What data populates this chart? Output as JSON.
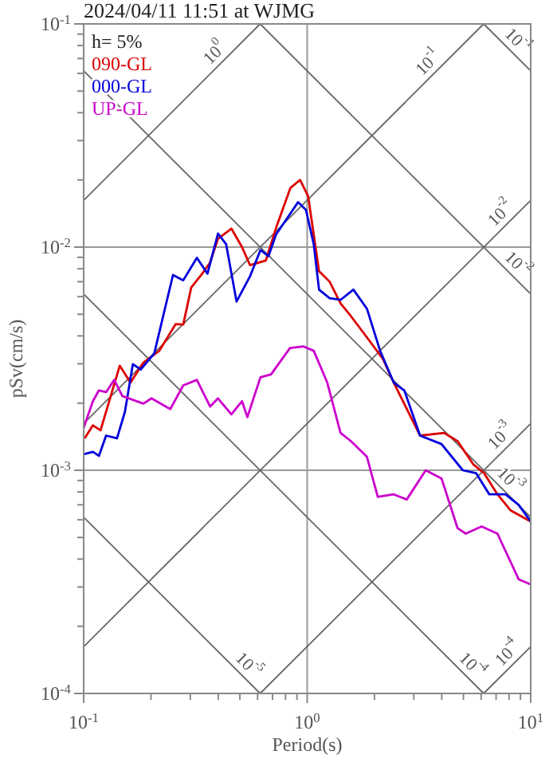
{
  "chart_data": {
    "type": "line",
    "title": "2024/04/11 11:51 at WJMG",
    "xlabel": "Period(s)",
    "ylabel": "pSv(cm/s)",
    "legend_title": "h= 5%",
    "legend": "top left",
    "log": "xy",
    "grid": true,
    "xlim": [
      0.1,
      10
    ],
    "ylim": [
      0.0001,
      0.1
    ],
    "xticks": [
      {
        "value": 0.1,
        "label": "10$^{-1}$"
      },
      {
        "value": 0.2,
        "label": null
      },
      {
        "value": 0.3,
        "label": null
      },
      {
        "value": 0.4,
        "label": null
      },
      {
        "value": 0.5,
        "label": null
      },
      {
        "value": 0.6,
        "label": null
      },
      {
        "value": 0.7,
        "label": null
      },
      {
        "value": 0.8,
        "label": null
      },
      {
        "value": 0.9,
        "label": null
      },
      {
        "value": 1,
        "label": "10$^{0}$"
      },
      {
        "value": 2,
        "label": null
      },
      {
        "value": 3,
        "label": null
      },
      {
        "value": 4,
        "label": null
      },
      {
        "value": 5,
        "label": null
      },
      {
        "value": 6,
        "label": null
      },
      {
        "value": 7,
        "label": null
      },
      {
        "value": 8,
        "label": null
      },
      {
        "value": 9,
        "label": null
      },
      {
        "value": 10,
        "label": "10$^{1}$"
      }
    ],
    "yticks": [
      {
        "value": 0.0001,
        "label": "10$^{-4}$"
      },
      {
        "value": 0.0002,
        "label": null
      },
      {
        "value": 0.0003,
        "label": null
      },
      {
        "value": 0.0004,
        "label": null
      },
      {
        "value": 0.0005,
        "label": null
      },
      {
        "value": 0.0006,
        "label": null
      },
      {
        "value": 0.0007,
        "label": null
      },
      {
        "value": 0.0008,
        "label": null
      },
      {
        "value": 0.0009,
        "label": null
      },
      {
        "value": 0.001,
        "label": "10$^{-3}$"
      },
      {
        "value": 0.002,
        "label": null
      },
      {
        "value": 0.003,
        "label": null
      },
      {
        "value": 0.004,
        "label": null
      },
      {
        "value": 0.005,
        "label": null
      },
      {
        "value": 0.006,
        "label": null
      },
      {
        "value": 0.007,
        "label": null
      },
      {
        "value": 0.008,
        "label": null
      },
      {
        "value": 0.009,
        "label": null
      },
      {
        "value": 0.01,
        "label": "10$^{-2}$"
      },
      {
        "value": 0.02,
        "label": null
      },
      {
        "value": 0.03,
        "label": null
      },
      {
        "value": 0.04,
        "label": null
      },
      {
        "value": 0.05,
        "label": null
      },
      {
        "value": 0.06,
        "label": null
      },
      {
        "value": 0.07,
        "label": null
      },
      {
        "value": 0.08,
        "label": null
      },
      {
        "value": 0.09,
        "label": null
      },
      {
        "value": 0.1,
        "label": "10$^{-1}$"
      }
    ],
    "series": [
      {
        "name": "090-GL",
        "color": "#dd0000",
        "x": [
          0.101,
          0.11,
          0.119,
          0.145,
          0.162,
          0.185,
          0.218,
          0.258,
          0.279,
          0.303,
          0.339,
          0.367,
          0.399,
          0.458,
          0.511,
          0.555,
          0.653,
          0.726,
          0.841,
          0.929,
          1.01,
          1.13,
          1.26,
          1.41,
          1.57,
          1.85,
          2.18,
          2.44,
          2.87,
          3.2,
          4.1,
          4.71,
          5.55,
          6.19,
          7.1,
          8.15,
          10
        ],
        "values": [
          0.00139,
          0.00159,
          0.00151,
          0.00294,
          0.00247,
          0.00304,
          0.00343,
          0.00452,
          0.0045,
          0.0066,
          0.0076,
          0.0085,
          0.0109,
          0.0121,
          0.01,
          0.0083,
          0.0087,
          0.0122,
          0.0184,
          0.02,
          0.0169,
          0.0078,
          0.007,
          0.0056,
          0.0049,
          0.00394,
          0.00316,
          0.00247,
          0.00178,
          0.00143,
          0.00147,
          0.00135,
          0.00106,
          0.00097,
          0.00078,
          0.00066,
          0.00059
        ]
      },
      {
        "name": "000-GL",
        "color": "#0000dd",
        "x": [
          0.1,
          0.11,
          0.117,
          0.126,
          0.141,
          0.153,
          0.166,
          0.18,
          0.207,
          0.231,
          0.251,
          0.279,
          0.321,
          0.358,
          0.399,
          0.434,
          0.483,
          0.555,
          0.618,
          0.671,
          0.726,
          0.815,
          0.91,
          0.987,
          1.07,
          1.13,
          1.26,
          1.41,
          1.61,
          1.85,
          2.12,
          2.44,
          2.72,
          3.2,
          3.99,
          4.97,
          5.7,
          6.53,
          7.71,
          8.83,
          10
        ],
        "values": [
          0.00118,
          0.00121,
          0.00116,
          0.00143,
          0.00139,
          0.00183,
          0.00299,
          0.00283,
          0.00334,
          0.0053,
          0.0075,
          0.0071,
          0.00895,
          0.0076,
          0.0115,
          0.0103,
          0.0057,
          0.0074,
          0.0097,
          0.0091,
          0.0114,
          0.0135,
          0.0159,
          0.0147,
          0.0103,
          0.00645,
          0.0059,
          0.0058,
          0.00645,
          0.0053,
          0.00343,
          0.00247,
          0.00228,
          0.00143,
          0.00131,
          0.001,
          0.00097,
          0.00078,
          0.00078,
          0.0007,
          0.00059
        ]
      },
      {
        "name": "UP-GL",
        "color": "#cc00cc",
        "x": [
          0.1,
          0.11,
          0.117,
          0.126,
          0.137,
          0.149,
          0.185,
          0.201,
          0.244,
          0.279,
          0.321,
          0.368,
          0.399,
          0.458,
          0.511,
          0.54,
          0.618,
          0.69,
          0.729,
          0.838,
          0.96,
          1.07,
          1.23,
          1.41,
          1.57,
          1.85,
          2.07,
          2.44,
          2.79,
          3.39,
          3.99,
          4.71,
          5.12,
          6.03,
          7.1,
          8.83,
          10
        ],
        "values": [
          0.00155,
          0.00204,
          0.00228,
          0.00224,
          0.00254,
          0.00215,
          0.00199,
          0.0021,
          0.00188,
          0.0024,
          0.00254,
          0.00193,
          0.0021,
          0.00178,
          0.00204,
          0.00173,
          0.00261,
          0.00269,
          0.00291,
          0.00353,
          0.00359,
          0.00343,
          0.00247,
          0.00147,
          0.00135,
          0.00115,
          0.00076,
          0.00078,
          0.00074,
          0.001,
          0.00092,
          0.00055,
          0.00052,
          0.00056,
          0.00052,
          0.000325,
          0.000308
        ]
      },
      {
        "color": "#666666",
        "x": [
          0.1,
          0.616
        ],
        "values": [
          0.0162,
          0.1
        ]
      },
      {
        "color": "#666666",
        "x": [
          0.1,
          6.16
        ],
        "values": [
          0.00162,
          0.1
        ]
      },
      {
        "color": "#666666",
        "x": [
          0.1,
          10
        ],
        "values": [
          0.000162,
          0.0162
        ]
      },
      {
        "color": "#666666",
        "x": [
          0.616,
          10
        ],
        "values": [
          0.0001,
          0.00162
        ]
      },
      {
        "color": "#666666",
        "x": [
          6.16,
          10
        ],
        "values": [
          0.0001,
          0.000162
        ]
      },
      {
        "color": "#666666",
        "x": [
          6.16,
          10
        ],
        "values": [
          0.1,
          0.0616
        ]
      },
      {
        "color": "#666666",
        "x": [
          0.616,
          10
        ],
        "values": [
          0.1,
          0.00616
        ]
      },
      {
        "color": "#666666",
        "x": [
          0.1,
          10
        ],
        "values": [
          0.0616,
          0.000616
        ]
      },
      {
        "color": "#666666",
        "x": [
          0.1,
          6.16
        ],
        "values": [
          0.00616,
          0.0001
        ]
      },
      {
        "color": "#666666",
        "x": [
          0.1,
          0.616
        ],
        "values": [
          0.000616,
          0.0001
        ]
      }
    ],
    "annotations": [
      {
        "text": "10$^{0}$",
        "x": 0.42,
        "y": 0.068
      },
      {
        "text": "10$^{-1}$",
        "x": 3.8,
        "y": 0.0616
      },
      {
        "text": "10$^{-2}$",
        "x": 8,
        "y": 0.013
      },
      {
        "text": "10$^{-3}$",
        "x": 8,
        "y": 0.0013
      },
      {
        "text": "10$^{-4}$",
        "x": 8.6,
        "y": 0.000139
      },
      {
        "text": "10$^{-1}$",
        "x": 8,
        "y": 0.077
      },
      {
        "text": "10$^{-2}$",
        "x": 8,
        "y": 0.0077
      },
      {
        "text": "10$^{-3}$",
        "x": 7.4,
        "y": 0.00083
      },
      {
        "text": "10$^{-4}$",
        "x": 5,
        "y": 0.000123
      },
      {
        "text": "10$^{-5}$",
        "x": 0.5,
        "y": 0.000123
      }
    ]
  }
}
